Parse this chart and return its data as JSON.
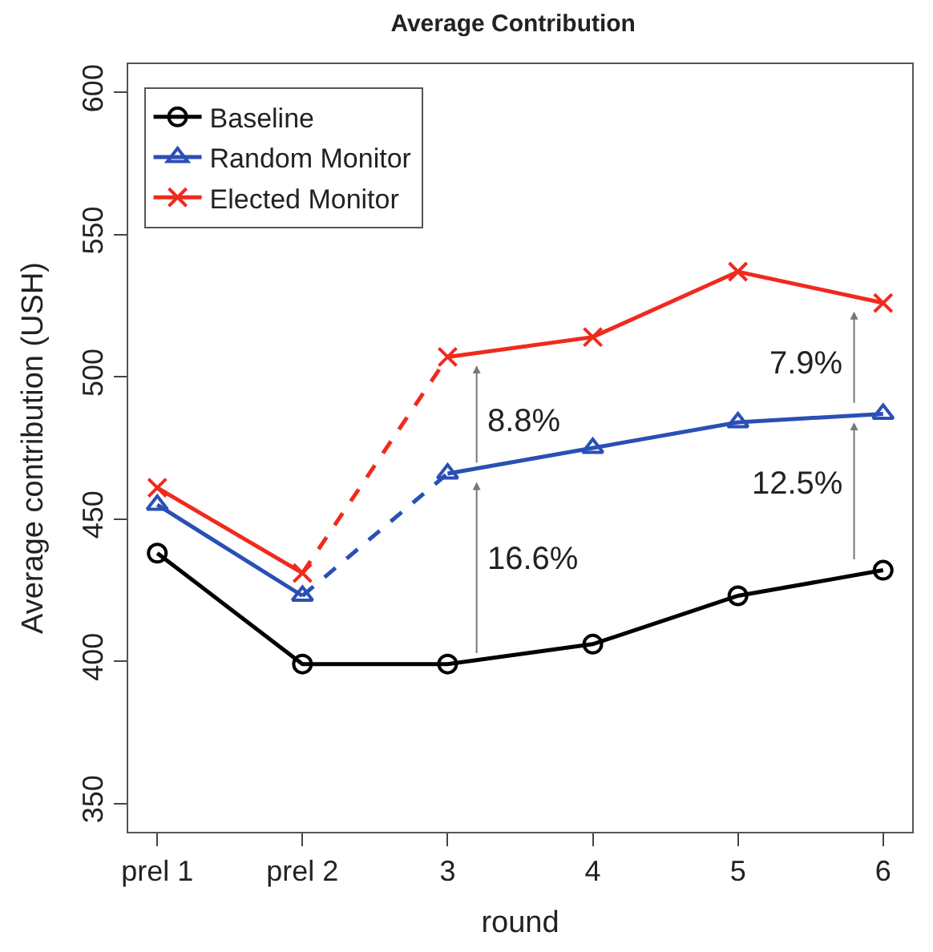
{
  "chart_data": {
    "type": "line",
    "title": "Average Contribution",
    "xlabel": "round",
    "ylabel": "Average contribution (USH)",
    "categories": [
      "prel 1",
      "prel 2",
      "3",
      "4",
      "5",
      "6"
    ],
    "series": [
      {
        "name": "Baseline",
        "color": "#000000",
        "marker": "circle",
        "values": [
          438,
          399,
          399,
          406,
          423,
          432
        ]
      },
      {
        "name": "Random Monitor",
        "color": "#2a4fb5",
        "marker": "triangle",
        "values": [
          455,
          423,
          null,
          null,
          null,
          null
        ]
      },
      {
        "color": "#2a4fb5",
        "line_style": "dashed",
        "values": [
          null,
          423,
          466,
          null,
          null,
          null
        ]
      },
      {
        "color": "#2a4fb5",
        "marker": "triangle",
        "values": [
          null,
          null,
          466,
          475,
          484,
          487
        ]
      },
      {
        "name": "Elected Monitor",
        "color": "#f02a1e",
        "marker": "cross",
        "values": [
          461,
          431,
          null,
          null,
          null,
          null
        ]
      },
      {
        "color": "#f02a1e",
        "line_style": "dashed",
        "values": [
          null,
          431,
          507,
          null,
          null,
          null
        ]
      },
      {
        "color": "#f02a1e",
        "marker": "cross",
        "values": [
          null,
          null,
          507,
          514,
          537,
          526
        ]
      }
    ],
    "annotations": [
      "16.6%",
      "8.8%",
      "12.5%",
      "7.9%"
    ],
    "ylim": [
      340,
      610
    ],
    "yticks": [
      350,
      400,
      450,
      500,
      550,
      600
    ],
    "legend": "top left",
    "line_style": "solid"
  }
}
